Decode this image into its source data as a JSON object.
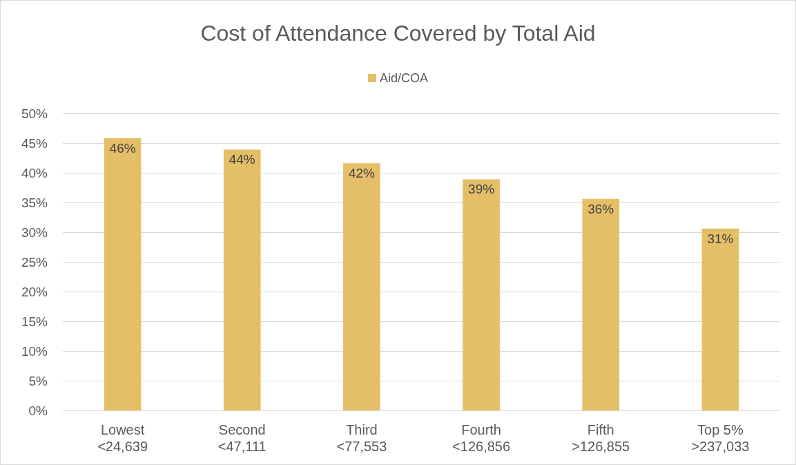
{
  "chart_data": {
    "type": "bar",
    "title": "Cost of Attendance Covered by Total Aid",
    "categories": [
      "Lowest\n<24,639",
      "Second\n<47,111",
      "Third\n<77,553",
      "Fourth\n<126,856",
      "Fifth\n>126,855",
      "Top 5%\n>237,033"
    ],
    "series": [
      {
        "name": "Aid/COA",
        "color": "#e5bf68",
        "values": [
          45.8,
          43.9,
          41.6,
          38.9,
          35.6,
          30.6
        ],
        "value_labels": [
          "46%",
          "44%",
          "42%",
          "39%",
          "36%",
          "31%"
        ]
      }
    ],
    "ylim": [
      0,
      50
    ],
    "yticks": [
      {
        "value": 0,
        "label": "0%"
      },
      {
        "value": 5,
        "label": "5%"
      },
      {
        "value": 10,
        "label": "10%"
      },
      {
        "value": 15,
        "label": "15%"
      },
      {
        "value": 20,
        "label": "20%"
      },
      {
        "value": 25,
        "label": "25%"
      },
      {
        "value": 30,
        "label": "30%"
      },
      {
        "value": 35,
        "label": "35%"
      },
      {
        "value": 40,
        "label": "40%"
      },
      {
        "value": 45,
        "label": "45%"
      },
      {
        "value": 50,
        "label": "50%"
      }
    ],
    "grid": "y",
    "legend": "top"
  }
}
